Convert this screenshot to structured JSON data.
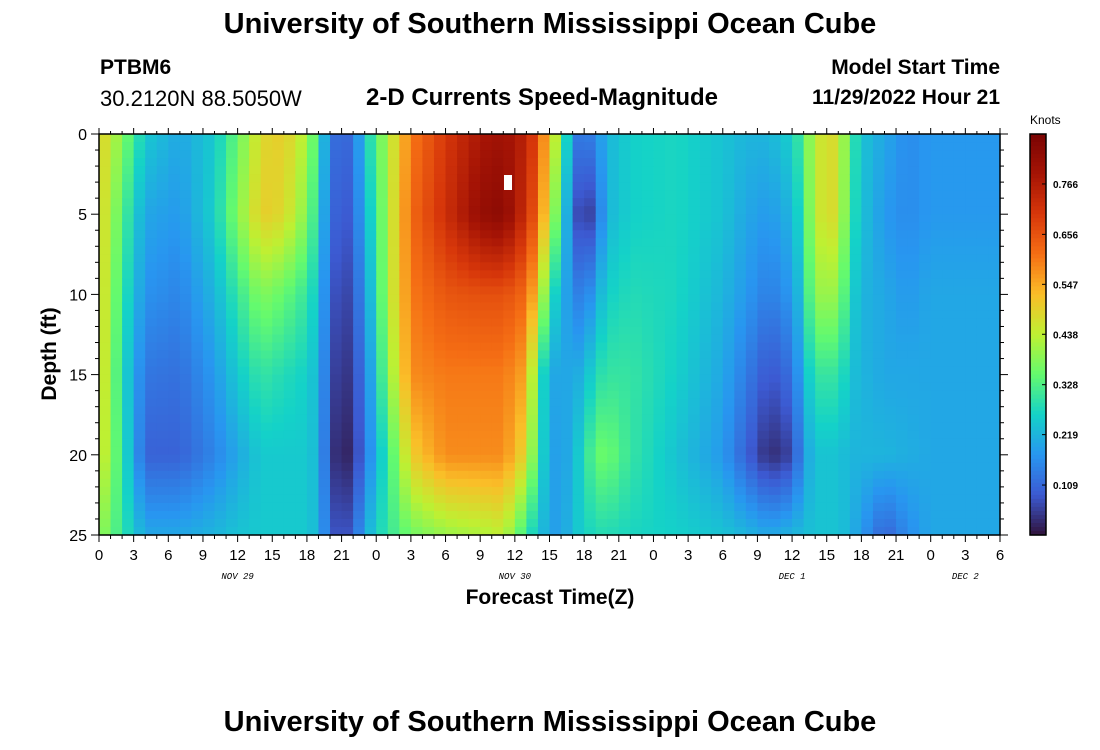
{
  "header": {
    "title": "University of Southern Mississippi Ocean Cube",
    "station_id": "PTBM6",
    "coordinates": "30.2120N  88.5050W",
    "subtitle": "2-D Currents Speed-Magnitude",
    "model_start_label": "Model Start Time",
    "model_start_value": "11/29/2022 Hour 21"
  },
  "footer": {
    "title": "University of Southern Mississippi Ocean Cube"
  },
  "chart_data": {
    "type": "heatmap",
    "title": "2-D Currents Speed-Magnitude",
    "xlabel": "Forecast Time(Z)",
    "ylabel": "Depth (ft)",
    "colorbar_label": "Knots",
    "x_hours_range": [
      0,
      78
    ],
    "ylim": [
      0,
      25
    ],
    "y_ticks": [
      "0",
      "5",
      "10",
      "15",
      "20",
      "25"
    ],
    "x_tick_labels": [
      "0",
      "3",
      "6",
      "9",
      "12",
      "15",
      "18",
      "21",
      "0",
      "3",
      "6",
      "9",
      "12",
      "15",
      "18",
      "21",
      "0",
      "3",
      "6",
      "9",
      "12",
      "15",
      "18",
      "21",
      "0",
      "3",
      "6"
    ],
    "date_labels": [
      {
        "label": "NOV 29",
        "hour": 12
      },
      {
        "label": "NOV 30",
        "hour": 36
      },
      {
        "label": "DEC 1",
        "hour": 60
      },
      {
        "label": "DEC 2",
        "hour": 75
      }
    ],
    "colorbar_ticks": [
      "0.766",
      "0.656",
      "0.547",
      "0.438",
      "0.328",
      "0.219",
      "0.109"
    ],
    "colorbar_range": [
      0,
      0.875
    ],
    "speed_field": {
      "depths": [
        0,
        5,
        10,
        15,
        20,
        25
      ],
      "columns": [
        {
          "hour": 0,
          "speed": [
            0.5,
            0.5,
            0.5,
            0.5,
            0.48,
            0.4
          ]
        },
        {
          "hour": 2,
          "speed": [
            0.38,
            0.33,
            0.3,
            0.28,
            0.3,
            0.3
          ]
        },
        {
          "hour": 4,
          "speed": [
            0.25,
            0.2,
            0.17,
            0.13,
            0.1,
            0.2
          ]
        },
        {
          "hour": 7,
          "speed": [
            0.2,
            0.18,
            0.15,
            0.12,
            0.1,
            0.2
          ]
        },
        {
          "hour": 10,
          "speed": [
            0.25,
            0.26,
            0.22,
            0.18,
            0.15,
            0.22
          ]
        },
        {
          "hour": 12,
          "speed": [
            0.35,
            0.38,
            0.3,
            0.25,
            0.2,
            0.24
          ]
        },
        {
          "hour": 14,
          "speed": [
            0.48,
            0.5,
            0.38,
            0.3,
            0.25,
            0.25
          ]
        },
        {
          "hour": 16,
          "speed": [
            0.5,
            0.48,
            0.35,
            0.28,
            0.25,
            0.25
          ]
        },
        {
          "hour": 18,
          "speed": [
            0.42,
            0.38,
            0.3,
            0.26,
            0.25,
            0.25
          ]
        },
        {
          "hour": 19,
          "speed": [
            0.3,
            0.27,
            0.24,
            0.22,
            0.22,
            0.22
          ]
        },
        {
          "hour": 20,
          "speed": [
            0.13,
            0.12,
            0.1,
            0.08,
            0.06,
            0.1
          ]
        },
        {
          "hour": 21,
          "speed": [
            0.1,
            0.08,
            0.05,
            0.03,
            0.01,
            0.06
          ]
        },
        {
          "hour": 22,
          "speed": [
            0.12,
            0.1,
            0.08,
            0.06,
            0.04,
            0.1
          ]
        },
        {
          "hour": 23,
          "speed": [
            0.25,
            0.22,
            0.18,
            0.14,
            0.12,
            0.2
          ]
        },
        {
          "hour": 24,
          "speed": [
            0.33,
            0.3,
            0.28,
            0.25,
            0.22,
            0.26
          ]
        },
        {
          "hour": 25,
          "speed": [
            0.42,
            0.42,
            0.42,
            0.38,
            0.3,
            0.3
          ]
        },
        {
          "hour": 27,
          "speed": [
            0.6,
            0.62,
            0.6,
            0.58,
            0.5,
            0.36
          ]
        },
        {
          "hour": 30,
          "speed": [
            0.7,
            0.72,
            0.65,
            0.6,
            0.58,
            0.4
          ]
        },
        {
          "hour": 33,
          "speed": [
            0.78,
            0.82,
            0.66,
            0.6,
            0.58,
            0.42
          ]
        },
        {
          "hour": 35,
          "speed": [
            0.8,
            0.84,
            0.66,
            0.6,
            0.58,
            0.44
          ]
        },
        {
          "hour": 37,
          "speed": [
            0.75,
            0.72,
            0.62,
            0.55,
            0.48,
            0.3
          ]
        },
        {
          "hour": 38,
          "speed": [
            0.66,
            0.62,
            0.5,
            0.32,
            0.3,
            0.24
          ]
        },
        {
          "hour": 39,
          "speed": [
            0.5,
            0.45,
            0.3,
            0.2,
            0.2,
            0.2
          ]
        },
        {
          "hour": 40,
          "speed": [
            0.38,
            0.3,
            0.22,
            0.2,
            0.18,
            0.18
          ]
        },
        {
          "hour": 41,
          "speed": [
            0.15,
            0.12,
            0.16,
            0.2,
            0.22,
            0.24
          ]
        },
        {
          "hour": 42,
          "speed": [
            0.12,
            0.02,
            0.13,
            0.22,
            0.28,
            0.26
          ]
        },
        {
          "hour": 43,
          "speed": [
            0.16,
            0.1,
            0.2,
            0.28,
            0.35,
            0.28
          ]
        },
        {
          "hour": 44,
          "speed": [
            0.22,
            0.22,
            0.26,
            0.3,
            0.36,
            0.28
          ]
        },
        {
          "hour": 46,
          "speed": [
            0.26,
            0.26,
            0.28,
            0.3,
            0.3,
            0.27
          ]
        },
        {
          "hour": 50,
          "speed": [
            0.27,
            0.27,
            0.27,
            0.26,
            0.24,
            0.26
          ]
        },
        {
          "hour": 54,
          "speed": [
            0.24,
            0.24,
            0.22,
            0.2,
            0.18,
            0.24
          ]
        },
        {
          "hour": 56,
          "speed": [
            0.22,
            0.2,
            0.18,
            0.14,
            0.1,
            0.22
          ]
        },
        {
          "hour": 58,
          "speed": [
            0.22,
            0.18,
            0.14,
            0.08,
            0.03,
            0.2
          ]
        },
        {
          "hour": 60,
          "speed": [
            0.26,
            0.22,
            0.18,
            0.12,
            0.06,
            0.22
          ]
        },
        {
          "hour": 61,
          "speed": [
            0.33,
            0.3,
            0.26,
            0.22,
            0.18,
            0.23
          ]
        },
        {
          "hour": 62,
          "speed": [
            0.45,
            0.45,
            0.4,
            0.3,
            0.24,
            0.24
          ]
        },
        {
          "hour": 64,
          "speed": [
            0.48,
            0.48,
            0.4,
            0.3,
            0.24,
            0.24
          ]
        },
        {
          "hour": 65,
          "speed": [
            0.32,
            0.3,
            0.27,
            0.24,
            0.22,
            0.22
          ]
        },
        {
          "hour": 66,
          "speed": [
            0.24,
            0.24,
            0.22,
            0.22,
            0.22,
            0.18
          ]
        },
        {
          "hour": 68,
          "speed": [
            0.2,
            0.18,
            0.2,
            0.2,
            0.22,
            0.1
          ]
        },
        {
          "hour": 70,
          "speed": [
            0.16,
            0.16,
            0.18,
            0.2,
            0.21,
            0.16
          ]
        },
        {
          "hour": 72,
          "speed": [
            0.18,
            0.18,
            0.2,
            0.2,
            0.2,
            0.2
          ]
        }
      ]
    }
  }
}
